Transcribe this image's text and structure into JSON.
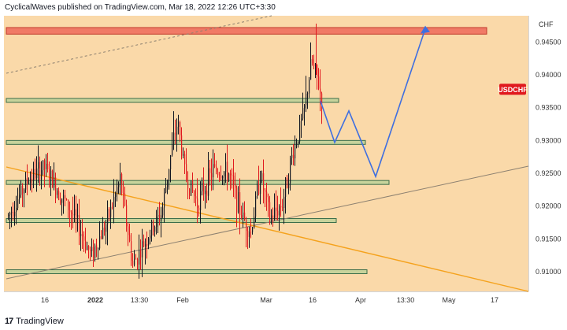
{
  "header": {
    "text": "CyclicalWaves published on TradingView.com, Mar 18, 2022 12:26 UTC+3:30"
  },
  "footer": {
    "logo_text": "TradingView"
  },
  "colors": {
    "background": "#fad9a9",
    "axis_bg": "#ffffff",
    "candle_up": "#131722",
    "candle_down": "#e0191e",
    "zone_red": "#f07a66",
    "zone_green": "#c7d39b",
    "projection": "#3f6fe0",
    "trend_orange": "#f5a21c",
    "trend_gray": "#8c8070",
    "badge": "#e0191e"
  },
  "chart_data": {
    "type": "candlestick",
    "symbol": "USDCHF",
    "unit": "CHF",
    "ylim": [
      0.907,
      0.949
    ],
    "x_ticks": [
      "16",
      "2022",
      "13:30",
      "Feb",
      "Mar",
      "16",
      "Apr",
      "13:30",
      "May",
      "17"
    ],
    "y_ticks": [
      "0.94500",
      "0.94000",
      "0.93500",
      "0.93000",
      "0.92500",
      "0.92000",
      "0.91500",
      "0.91000"
    ],
    "zones": [
      {
        "name": "resistance-top",
        "low": 0.9462,
        "high": 0.9472,
        "color": "red"
      },
      {
        "name": "zone-0.9360",
        "low": 0.9358,
        "high": 0.9364,
        "color": "green"
      },
      {
        "name": "zone-0.9297",
        "low": 0.9294,
        "high": 0.93,
        "color": "green"
      },
      {
        "name": "zone-0.9236",
        "low": 0.9233,
        "high": 0.9239,
        "color": "green"
      },
      {
        "name": "zone-0.9178",
        "low": 0.9175,
        "high": 0.9181,
        "color": "green"
      },
      {
        "name": "zone-0.9100",
        "low": 0.9097,
        "high": 0.9103,
        "color": "green"
      }
    ],
    "projection_path": [
      0.936,
      0.9297,
      0.9345,
      0.9245,
      0.947
    ],
    "last_close": 0.9378
  }
}
